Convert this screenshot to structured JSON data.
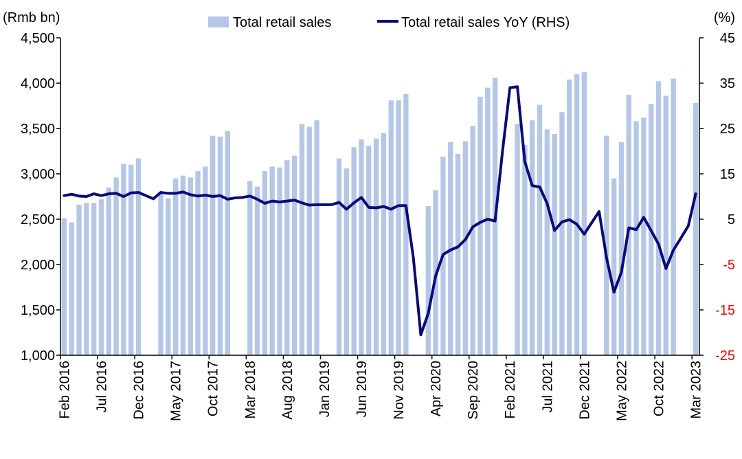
{
  "chart_data": {
    "type": "bar",
    "title": "",
    "legend": {
      "position": "top",
      "bar_label": "Total retail sales",
      "line_label": "Total retail sales YoY (RHS)"
    },
    "left_axis": {
      "unit_label": "(Rmb bn)",
      "ylim": [
        1000,
        4500
      ],
      "ticks": [
        "1,000",
        "1,500",
        "2,000",
        "2,500",
        "3,000",
        "3,500",
        "4,000",
        "4,500"
      ],
      "tick_values": [
        1000,
        1500,
        2000,
        2500,
        3000,
        3500,
        4000,
        4500
      ]
    },
    "right_axis": {
      "unit_label": "(%)",
      "ylim": [
        -25,
        45
      ],
      "ticks": [
        "-25",
        "-15",
        "-5",
        "5",
        "15",
        "25",
        "35",
        "45"
      ],
      "tick_values": [
        -25,
        -15,
        -5,
        5,
        15,
        25,
        35,
        45
      ],
      "negative_color": "#ff0000"
    },
    "x": [
      "Feb 2016",
      "Mar 2016",
      "Apr 2016",
      "May 2016",
      "Jun 2016",
      "Jul 2016",
      "Aug 2016",
      "Sep 2016",
      "Oct 2016",
      "Nov 2016",
      "Dec 2016",
      "Jan 2017",
      "Feb 2017",
      "Mar 2017",
      "Apr 2017",
      "May 2017",
      "Jun 2017",
      "Jul 2017",
      "Aug 2017",
      "Sep 2017",
      "Oct 2017",
      "Nov 2017",
      "Dec 2017",
      "Jan 2018",
      "Feb 2018",
      "Mar 2018",
      "Apr 2018",
      "May 2018",
      "Jun 2018",
      "Jul 2018",
      "Aug 2018",
      "Sep 2018",
      "Oct 2018",
      "Nov 2018",
      "Dec 2018",
      "Jan 2019",
      "Feb 2019",
      "Mar 2019",
      "Apr 2019",
      "May 2019",
      "Jun 2019",
      "Jul 2019",
      "Aug 2019",
      "Sep 2019",
      "Oct 2019",
      "Nov 2019",
      "Dec 2019",
      "Jan 2020",
      "Feb 2020",
      "Mar 2020",
      "Apr 2020",
      "May 2020",
      "Jun 2020",
      "Jul 2020",
      "Aug 2020",
      "Sep 2020",
      "Oct 2020",
      "Nov 2020",
      "Dec 2020",
      "Jan 2021",
      "Feb 2021",
      "Mar 2021",
      "Apr 2021",
      "May 2021",
      "Jun 2021",
      "Jul 2021",
      "Aug 2021",
      "Sep 2021",
      "Oct 2021",
      "Nov 2021",
      "Dec 2021",
      "Jan 2022",
      "Feb 2022",
      "Mar 2022",
      "Apr 2022",
      "May 2022",
      "Jun 2022",
      "Jul 2022",
      "Aug 2022",
      "Sep 2022",
      "Oct 2022",
      "Nov 2022",
      "Dec 2022",
      "Jan 2023",
      "Feb 2023",
      "Mar 2023"
    ],
    "x_tick_labels": [
      {
        "category": "Feb 2016",
        "label": "Feb 2016"
      },
      {
        "category": "Jul 2016",
        "label": "Jul 2016"
      },
      {
        "category": "Dec 2016",
        "label": "Dec 2016"
      },
      {
        "category": "May 2017",
        "label": "May 2017"
      },
      {
        "category": "Oct 2017",
        "label": "Oct 2017"
      },
      {
        "category": "Mar 2018",
        "label": "Mar 2018"
      },
      {
        "category": "Aug 2018",
        "label": "Aug 2018"
      },
      {
        "category": "Jan 2019",
        "label": "Jan 2019"
      },
      {
        "category": "Jun 2019",
        "label": "Jun 2019"
      },
      {
        "category": "Nov 2019",
        "label": "Nov 2019"
      },
      {
        "category": "Apr 2020",
        "label": "Apr 2020"
      },
      {
        "category": "Sep 2020",
        "label": "Sep 2020"
      },
      {
        "category": "Feb 2021",
        "label": "Feb 2021"
      },
      {
        "category": "Jul 2021",
        "label": "Jul 2021"
      },
      {
        "category": "Dec 2021",
        "label": "Dec 2021"
      },
      {
        "category": "May 2022",
        "label": "May 2022"
      },
      {
        "category": "Oct 2022",
        "label": "Oct 2022"
      },
      {
        "category": "Mar 2023",
        "label": "Mar 2023"
      }
    ],
    "series": [
      {
        "name": "Total retail sales",
        "kind": "bar",
        "axis": "left",
        "color": "#b4c7e7",
        "values": [
          2510,
          2465,
          2660,
          2680,
          2680,
          2720,
          2850,
          2960,
          3110,
          3100,
          3170,
          null,
          null,
          2790,
          2730,
          2950,
          2980,
          2960,
          3030,
          3080,
          3420,
          3410,
          3470,
          null,
          null,
          2920,
          2860,
          3030,
          3080,
          3070,
          3150,
          3200,
          3550,
          3520,
          3590,
          null,
          null,
          3170,
          3060,
          3295,
          3380,
          3310,
          3390,
          3450,
          3810,
          3810,
          3880,
          null,
          null,
          2645,
          2820,
          3190,
          3350,
          3220,
          3360,
          3530,
          3850,
          3950,
          4060,
          null,
          null,
          3550,
          3320,
          3590,
          3760,
          3490,
          3440,
          3680,
          4040,
          4100,
          4120,
          null,
          null,
          3420,
          2950,
          3350,
          3870,
          3580,
          3620,
          3770,
          4020,
          3860,
          4050,
          null,
          null,
          3780
        ]
      },
      {
        "name": "Total retail sales YoY (RHS)",
        "kind": "line",
        "axis": "right",
        "color": "#0a0a78",
        "values": [
          10.2,
          10.5,
          10.1,
          10.0,
          10.6,
          10.2,
          10.6,
          10.7,
          10.0,
          10.8,
          10.9,
          10.2,
          9.5,
          10.9,
          10.7,
          10.7,
          11.0,
          10.4,
          10.1,
          10.3,
          10.0,
          10.2,
          9.4,
          9.7,
          9.8,
          10.1,
          9.4,
          8.5,
          9.0,
          8.8,
          9.0,
          9.2,
          8.6,
          8.1,
          8.2,
          8.2,
          8.2,
          8.7,
          7.2,
          8.6,
          9.8,
          7.6,
          7.5,
          7.8,
          7.2,
          8.0,
          8.0,
          -3.5,
          -20.5,
          -15.8,
          -7.5,
          -2.8,
          -1.8,
          -1.1,
          0.5,
          3.3,
          4.3,
          5.0,
          4.6,
          20.0,
          34.0,
          34.2,
          17.7,
          12.4,
          12.1,
          8.5,
          2.5,
          4.4,
          4.9,
          3.9,
          1.7,
          4.2,
          6.7,
          -3.5,
          -11.1,
          -6.7,
          3.1,
          2.7,
          5.4,
          2.5,
          -0.5,
          -5.9,
          -1.8,
          0.8,
          3.5,
          10.6
        ]
      }
    ]
  }
}
